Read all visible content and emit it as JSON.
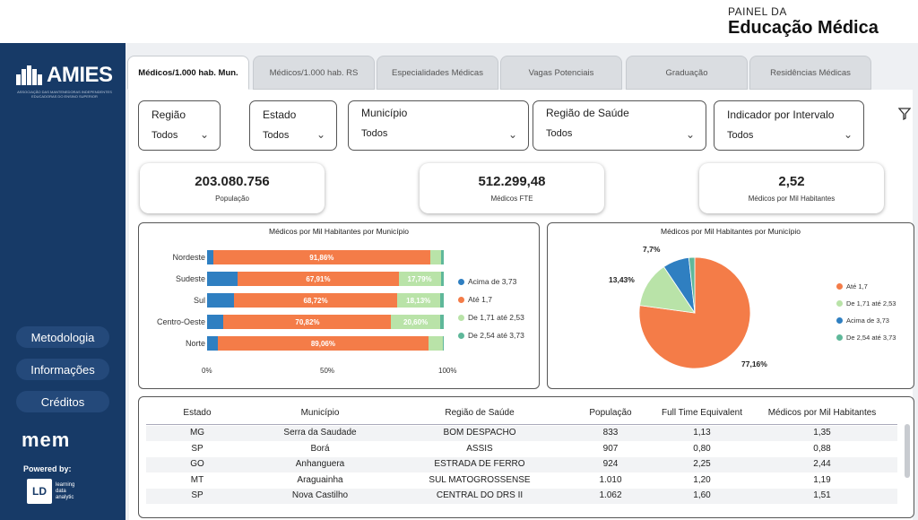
{
  "header": {
    "subtitle": "PAINEL DA",
    "title": "Educação Médica"
  },
  "sidebar": {
    "logo_text": "AMIES",
    "logo_tagline": "ASSOCIAÇÃO DAS MANTENEDORAS INDEPENDENTES EDUCADORAS DO ENSINO SUPERIOR",
    "buttons": [
      "Metodologia",
      "Informações",
      "Créditos"
    ],
    "mem_logo": "mem",
    "powered_by": "Powered by:",
    "ld_logo": "LD",
    "ld_text": [
      "learning",
      "data",
      "analytic"
    ]
  },
  "tabs": [
    {
      "label": "Médicos/1.000 hab. Mun.",
      "active": true
    },
    {
      "label": "Médicos/1.000 hab. RS",
      "active": false
    },
    {
      "label": "Especialidades Médicas",
      "active": false
    },
    {
      "label": "Vagas Potenciais",
      "active": false
    },
    {
      "label": "Graduação",
      "active": false
    },
    {
      "label": "Residências Médicas",
      "active": false
    }
  ],
  "filters": [
    {
      "label": "Região",
      "value": "Todos"
    },
    {
      "label": "Estado",
      "value": "Todos"
    },
    {
      "label": "Município",
      "value": "Todos"
    },
    {
      "label": "Região de Saúde",
      "value": "Todos"
    },
    {
      "label": "Indicador por Intervalo",
      "value": "Todos"
    }
  ],
  "kpis": [
    {
      "value": "203.080.756",
      "caption": "População"
    },
    {
      "value": "512.299,48",
      "caption": "Médicos FTE"
    },
    {
      "value": "2,52",
      "caption": "Médicos por Mil Habitantes"
    }
  ],
  "colors": {
    "acima": "#2f7fc1",
    "ate": "#f47c48",
    "de171": "#b9e3a8",
    "de254": "#5fb89a",
    "sidebar": "#173a67"
  },
  "chart_data": [
    {
      "type": "bar",
      "stacked": "100%",
      "orientation": "horizontal",
      "title": "Médicos por Mil Habitantes por Município",
      "categories": [
        "Nordeste",
        "Sudeste",
        "Sul",
        "Centro-Oeste",
        "Norte"
      ],
      "series": [
        {
          "name": "Acima de 3,73",
          "values": [
            2.5,
            13.0,
            11.5,
            7.0,
            4.5
          ]
        },
        {
          "name": "Até 1,7",
          "values": [
            91.86,
            67.91,
            68.72,
            70.82,
            89.06
          ]
        },
        {
          "name": "De 1,71 até 2,53",
          "values": [
            4.5,
            17.79,
            18.13,
            20.6,
            6.0
          ]
        },
        {
          "name": "De 2,54 até 3,73",
          "values": [
            1.14,
            1.3,
            1.65,
            1.58,
            0.44
          ]
        }
      ],
      "data_labels": {
        "Até 1,7": [
          "91,86%",
          "67,91%",
          "68,72%",
          "70,82%",
          "89,06%"
        ],
        "De 1,71 até 2,53": [
          "",
          "17,79%",
          "18,13%",
          "20,60%",
          ""
        ]
      },
      "x_ticks": [
        "0%",
        "50%",
        "100%"
      ],
      "xlim": [
        0,
        100
      ],
      "legend": "right"
    },
    {
      "type": "pie",
      "title": "Médicos por Mil Habitantes por Município",
      "slices": [
        {
          "name": "Até 1,7",
          "value": 77.16,
          "label": "77,16%"
        },
        {
          "name": "De 1,71 até 2,53",
          "value": 13.43,
          "label": "13,43%"
        },
        {
          "name": "Acima de 3,73",
          "value": 7.7,
          "label": "7,7%"
        },
        {
          "name": "De 2,54 até 3,73",
          "value": 1.71,
          "label": ""
        }
      ],
      "legend": "right"
    }
  ],
  "table": {
    "columns": [
      "Estado",
      "Município",
      "Região de Saúde",
      "População",
      "Full Time Equivalent",
      "Médicos por Mil Habitantes"
    ],
    "sorted_column": "População",
    "rows": [
      [
        "MG",
        "Serra da Saudade",
        "BOM DESPACHO",
        "833",
        "1,13",
        "1,35"
      ],
      [
        "SP",
        "Borá",
        "ASSIS",
        "907",
        "0,80",
        "0,88"
      ],
      [
        "GO",
        "Anhanguera",
        "ESTRADA DE FERRO",
        "924",
        "2,25",
        "2,44"
      ],
      [
        "MT",
        "Araguainha",
        "SUL MATOGROSSENSE",
        "1.010",
        "1,20",
        "1,19"
      ],
      [
        "SP",
        "Nova Castilho",
        "CENTRAL DO DRS II",
        "1.062",
        "1,60",
        "1,51"
      ]
    ]
  },
  "icons": {
    "chevron": "chevron-down-icon",
    "filter_clear": "filter-eraser-icon"
  }
}
